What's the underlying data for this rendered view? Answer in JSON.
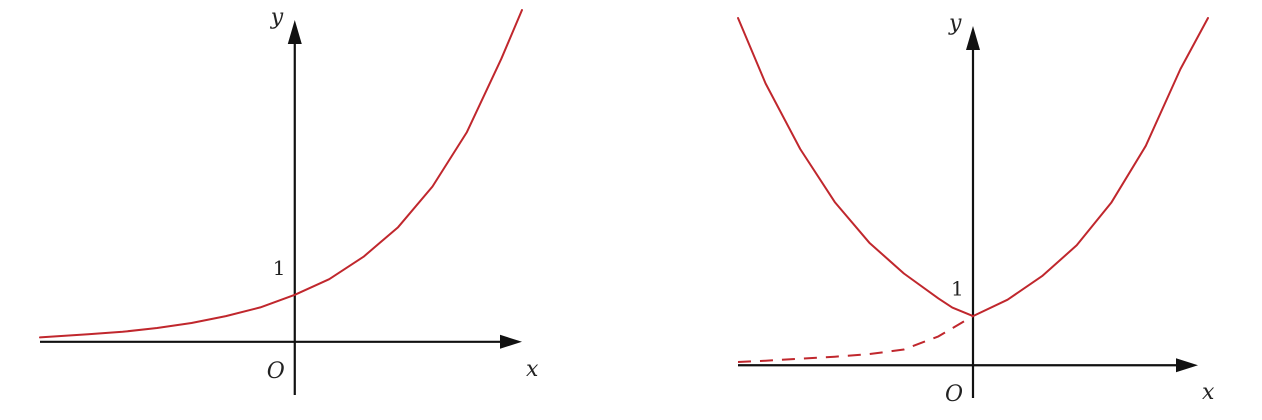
{
  "colors": {
    "axis": "#111111",
    "curve": "#c0272d",
    "background": "#ffffff"
  },
  "chart_data": [
    {
      "type": "line",
      "title": "",
      "xlabel": "x",
      "ylabel": "y",
      "origin_label": "O",
      "ticks": {
        "y": [
          {
            "value": 1,
            "label": "1"
          }
        ]
      },
      "xlim": [
        -3.7,
        3.3
      ],
      "ylim": [
        -0.85,
        5.3
      ],
      "grid": false,
      "legend": "none",
      "series": [
        {
          "style": "solid",
          "x": [
            -3.7,
            -3.0,
            -2.5,
            -2.0,
            -1.5,
            -1.0,
            -0.5,
            0.0,
            0.5,
            1.0,
            1.5,
            2.0,
            2.5,
            3.0,
            3.3
          ],
          "y": [
            0.07,
            0.12,
            0.16,
            0.22,
            0.3,
            0.41,
            0.55,
            0.75,
            1.0,
            1.36,
            1.83,
            2.48,
            3.35,
            4.52,
            5.3
          ]
        }
      ]
    },
    {
      "type": "line",
      "title": "",
      "xlabel": "x",
      "ylabel": "y",
      "origin_label": "O",
      "ticks": {
        "y": [
          {
            "value": 1,
            "label": "1"
          }
        ]
      },
      "xlim": [
        -3.4,
        3.4
      ],
      "ylim": [
        -0.5,
        5.3
      ],
      "grid": false,
      "legend": "none",
      "series": [
        {
          "style": "solid",
          "x": [
            -3.4,
            -3.0,
            -2.5,
            -2.0,
            -1.5,
            -1.0,
            -0.5,
            -0.3,
            0.0
          ],
          "y": [
            5.3,
            4.3,
            3.3,
            2.49,
            1.87,
            1.4,
            1.02,
            0.88,
            0.75
          ]
        },
        {
          "style": "dashed",
          "x": [
            -3.4,
            -3.0,
            -2.5,
            -2.0,
            -1.5,
            -1.0,
            -0.5,
            0.0
          ],
          "y": [
            0.05,
            0.07,
            0.1,
            0.13,
            0.17,
            0.24,
            0.44,
            0.75
          ]
        },
        {
          "style": "solid",
          "x": [
            0.0,
            0.5,
            1.0,
            1.5,
            2.0,
            2.5,
            3.0,
            3.4
          ],
          "y": [
            0.75,
            1.0,
            1.36,
            1.83,
            2.48,
            3.35,
            4.52,
            5.3
          ]
        }
      ]
    }
  ]
}
